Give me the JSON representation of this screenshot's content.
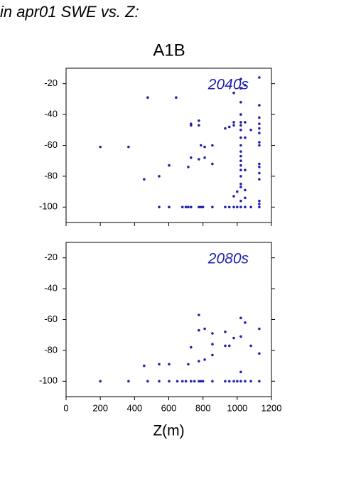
{
  "header": "in apr01 SWE vs. Z:",
  "chart_data": [
    {
      "type": "scatter",
      "title": "A1B",
      "annotation": "2040s",
      "color": "#2020b0",
      "xlim": [
        0,
        1200
      ],
      "xticks": [
        0,
        200,
        400,
        600,
        800,
        1000,
        1200
      ],
      "ylim": [
        -110,
        -10
      ],
      "yticks": [
        -20,
        -40,
        -60,
        -80,
        -100
      ],
      "x": [
        200,
        365,
        456,
        477,
        544,
        544,
        602,
        602,
        643,
        680,
        700,
        714,
        714,
        730,
        730,
        730,
        730,
        776,
        776,
        776,
        776,
        788,
        788,
        800,
        810,
        810,
        855,
        855,
        855,
        930,
        930,
        954,
        954,
        980,
        980,
        980,
        980,
        980,
        1000,
        1000,
        1021,
        1021,
        1021,
        1021,
        1021,
        1021,
        1021,
        1021,
        1021,
        1021,
        1021,
        1021,
        1021,
        1021,
        1021,
        1021,
        1021,
        1021,
        1021,
        1046,
        1046,
        1046,
        1046,
        1046,
        1046,
        1046,
        1080,
        1080,
        1129,
        1129,
        1129,
        1129,
        1129,
        1129,
        1129,
        1129,
        1129,
        1129,
        1129,
        1129,
        1129,
        1129,
        1129
      ],
      "values": [
        -61,
        -61,
        -82,
        -29,
        -80,
        -100,
        -73,
        -100,
        -29,
        -100,
        -100,
        -74,
        -100,
        -46,
        -47,
        -68,
        -100,
        -44,
        -47,
        -69,
        -100,
        -60,
        -100,
        -100,
        -61,
        -68,
        -60,
        -72,
        -100,
        -49,
        -100,
        -48,
        -100,
        -26,
        -45,
        -47,
        -93,
        -100,
        -90,
        -100,
        -17,
        -23,
        -32,
        -40,
        -45,
        -47,
        -50,
        -55,
        -60,
        -64,
        -67,
        -70,
        -73,
        -76,
        -80,
        -85,
        -87,
        -96,
        -100,
        -21,
        -45,
        -55,
        -76,
        -89,
        -94,
        -100,
        -50,
        -100,
        -16,
        -34,
        -42,
        -46,
        -49,
        -52,
        -58,
        -60,
        -72,
        -74,
        -78,
        -82,
        -96,
        -98,
        -100
      ]
    },
    {
      "type": "scatter",
      "annotation": "2080s",
      "color": "#2020b0",
      "xlabel": "Z(m)",
      "xlim": [
        0,
        1200
      ],
      "xticks": [
        0,
        200,
        400,
        600,
        800,
        1000,
        1200
      ],
      "ylim": [
        -110,
        -10
      ],
      "yticks": [
        -20,
        -40,
        -60,
        -80,
        -100
      ],
      "x": [
        200,
        365,
        456,
        477,
        544,
        544,
        602,
        602,
        650,
        680,
        700,
        714,
        730,
        730,
        750,
        776,
        776,
        776,
        776,
        788,
        800,
        810,
        810,
        855,
        855,
        855,
        855,
        930,
        930,
        930,
        954,
        954,
        980,
        980,
        1000,
        1021,
        1021,
        1021,
        1021,
        1046,
        1046,
        1080,
        1080,
        1129,
        1129,
        1129
      ],
      "values": [
        -100,
        -100,
        -90,
        -100,
        -89,
        -100,
        -89,
        -100,
        -100,
        -100,
        -100,
        -89,
        -78,
        -100,
        -100,
        -57,
        -67,
        -87,
        -100,
        -100,
        -100,
        -66,
        -86,
        -69,
        -76,
        -83,
        -100,
        -68,
        -77,
        -100,
        -77,
        -100,
        -72,
        -100,
        -100,
        -59,
        -71,
        -94,
        -100,
        -62,
        -100,
        -77,
        -100,
        -66,
        -82,
        -100
      ]
    }
  ]
}
